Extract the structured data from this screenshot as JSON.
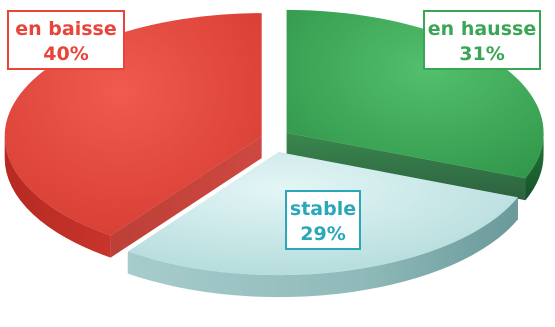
{
  "chart_data": {
    "type": "pie",
    "style": "3d-exploded",
    "slices": [
      {
        "label": "en hausse",
        "value": 31,
        "value_label": "31%",
        "color": "#3aa655",
        "side_color": "#1f6e33",
        "label_color": "#3aa655"
      },
      {
        "label": "stable",
        "value": 29,
        "value_label": "29%",
        "color": "#bfe3e3",
        "side_color": "#7fb1b1",
        "label_color": "#2aa7b8"
      },
      {
        "label": "en baisse",
        "value": 40,
        "value_label": "40%",
        "color": "#e8443a",
        "side_color": "#a8261f",
        "label_color": "#e8443a"
      }
    ]
  }
}
